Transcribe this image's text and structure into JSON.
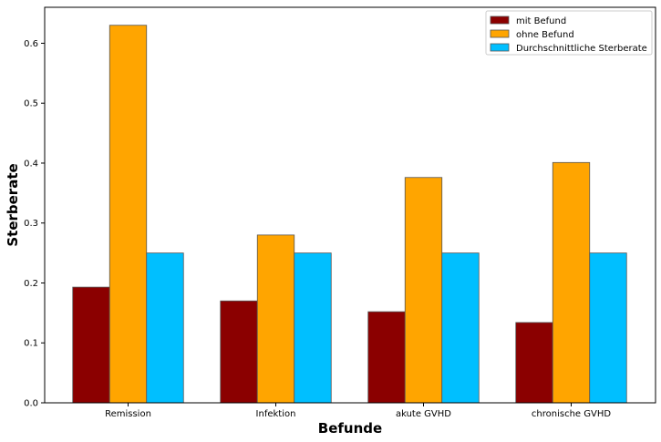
{
  "chart_data": {
    "type": "bar",
    "categories": [
      "Remission",
      "Infektion",
      "akute GVHD",
      "chronische GVHD"
    ],
    "series": [
      {
        "name": "mit Befund",
        "values": [
          0.193,
          0.17,
          0.152,
          0.134
        ],
        "color": "#8b0000"
      },
      {
        "name": "ohne Befund",
        "values": [
          0.63,
          0.28,
          0.376,
          0.401
        ],
        "color": "#ffa500"
      },
      {
        "name": "Durchschnittliche Sterberate",
        "values": [
          0.25,
          0.25,
          0.25,
          0.25
        ],
        "color": "#00bfff"
      }
    ],
    "xlabel": "Befunde",
    "ylabel": "Sterberate",
    "ylim": [
      0,
      0.66
    ],
    "yticks": [
      "0.0",
      "0.1",
      "0.2",
      "0.3",
      "0.4",
      "0.5",
      "0.6"
    ],
    "legend_position": "top-right",
    "grid": false
  }
}
